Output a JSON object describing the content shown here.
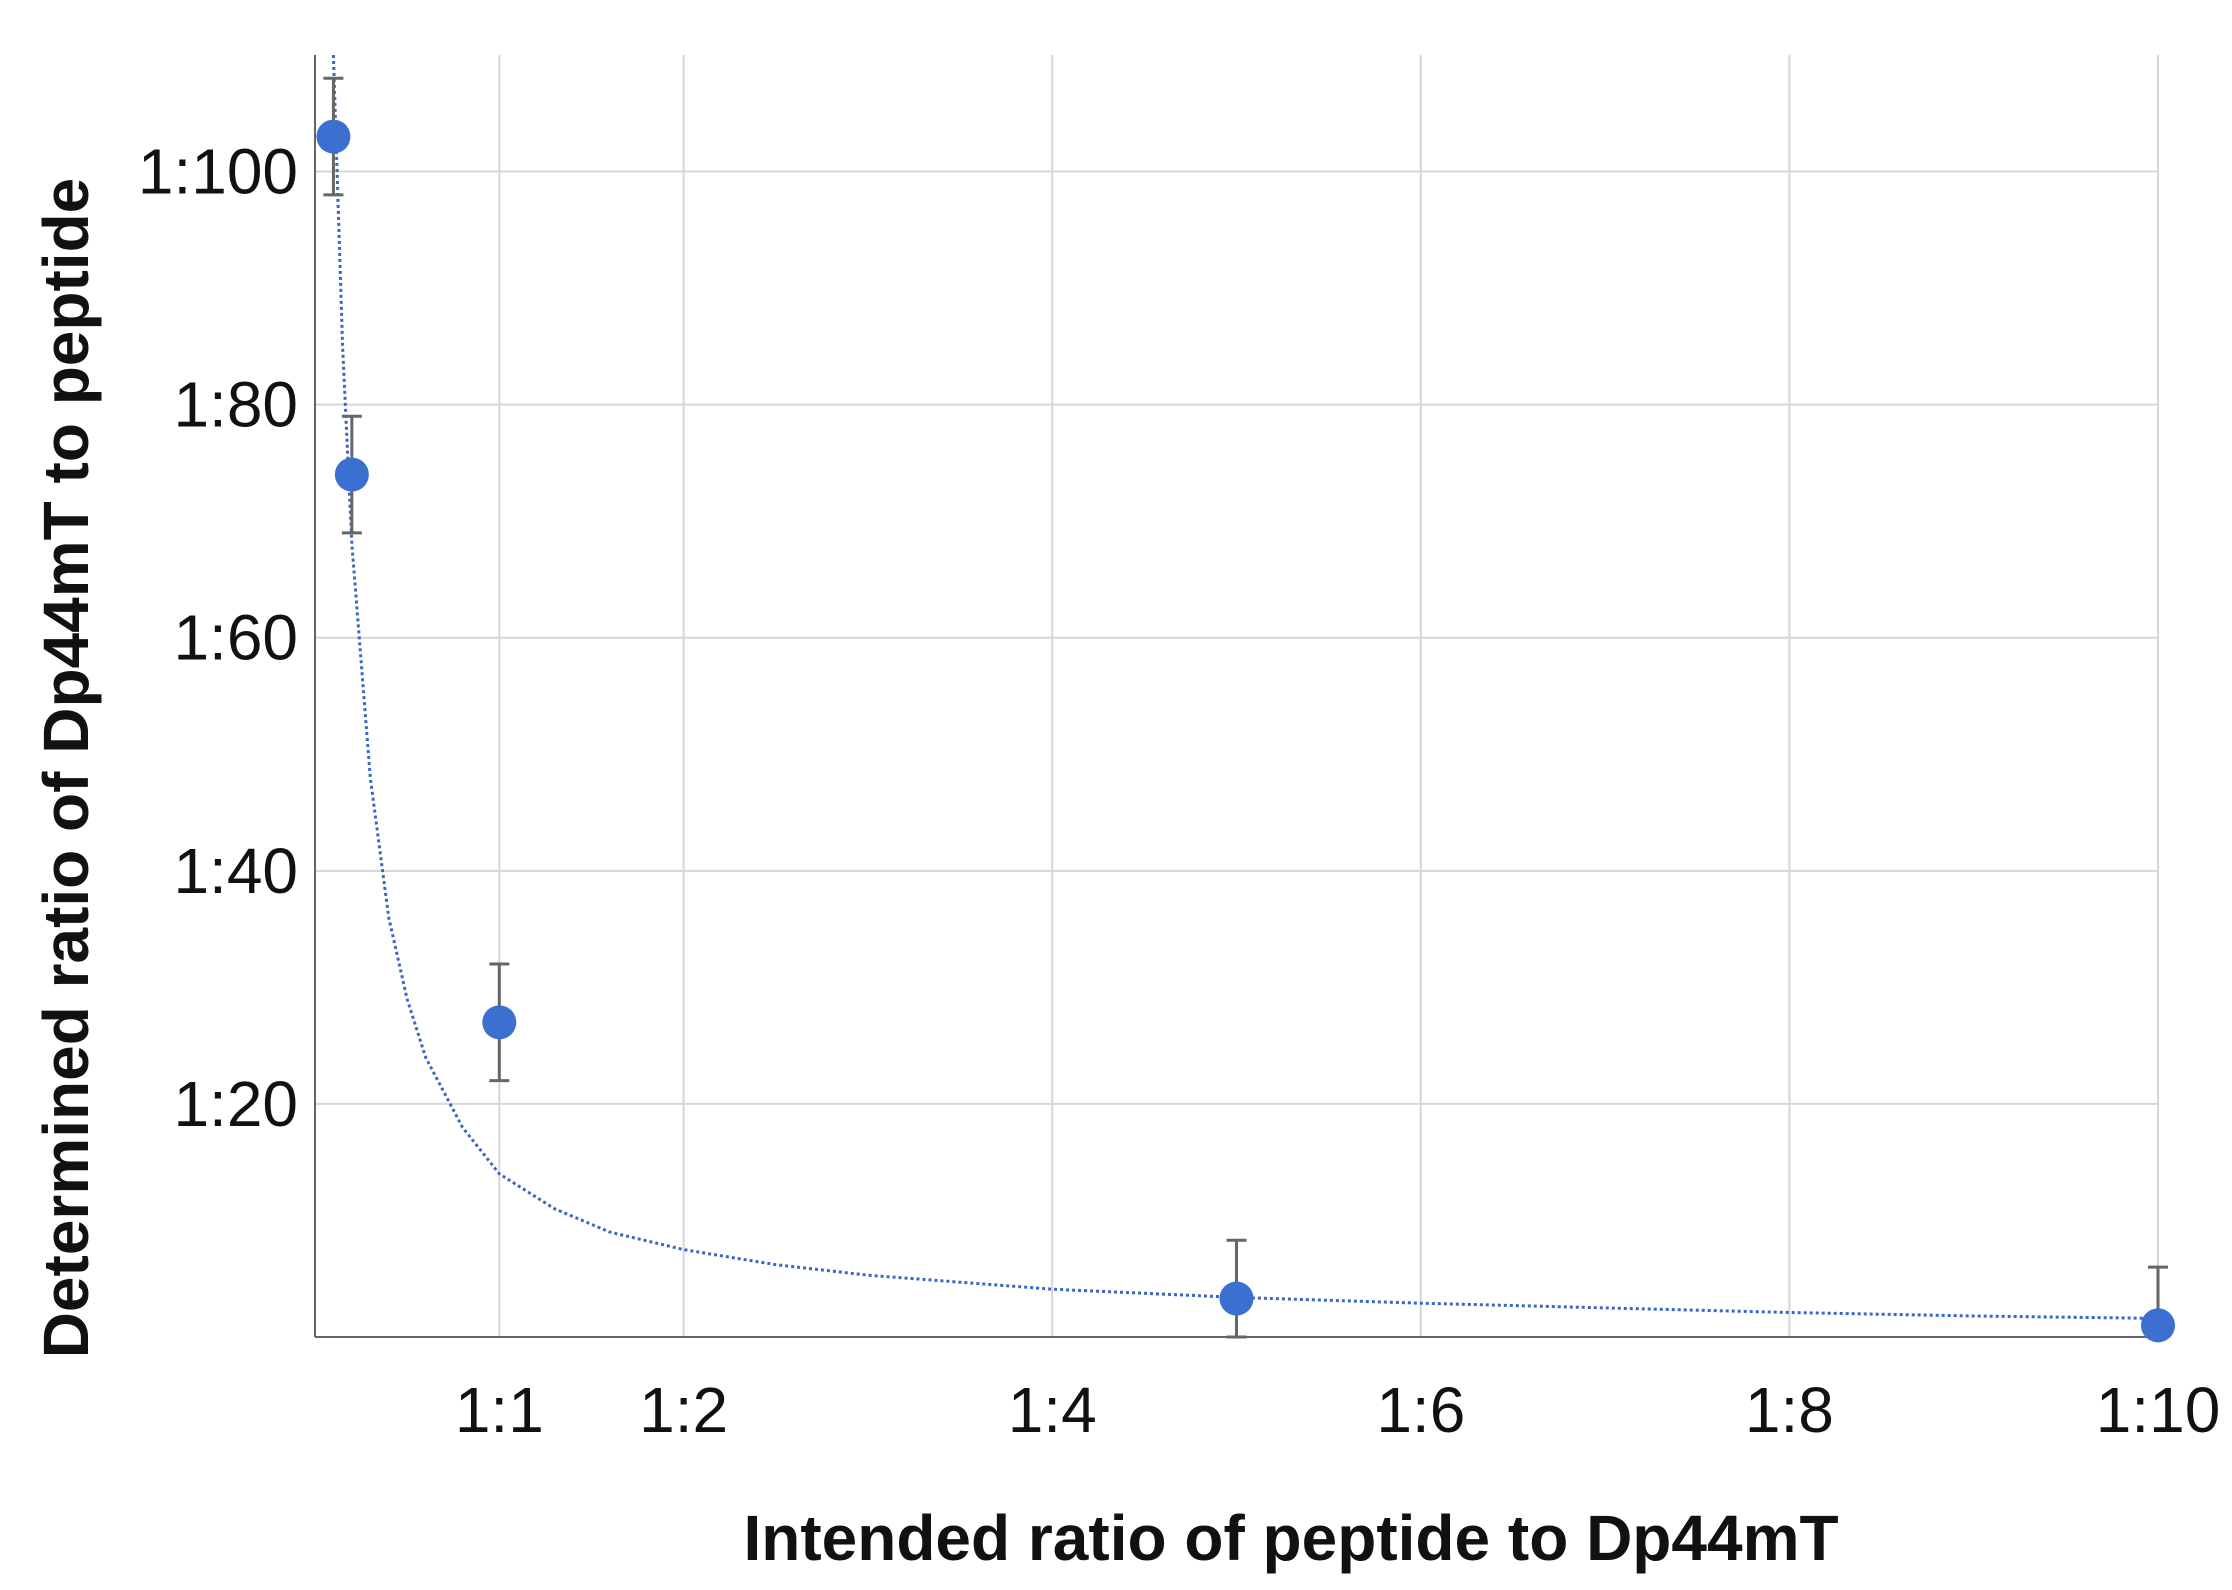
{
  "chart_data": {
    "type": "scatter",
    "xlabel": "Intended ratio of peptide to Dp44mT",
    "ylabel": "Determined ratio of Dp44mT to peptide",
    "xlim": [
      0,
      10
    ],
    "ylim": [
      0,
      110
    ],
    "x_ticks": [
      {
        "value": 1,
        "label": "1:1"
      },
      {
        "value": 2,
        "label": "1:2"
      },
      {
        "value": 4,
        "label": "1:4"
      },
      {
        "value": 6,
        "label": "1:6"
      },
      {
        "value": 8,
        "label": "1:8"
      },
      {
        "value": 10,
        "label": "1:10"
      }
    ],
    "y_ticks": [
      {
        "value": 20,
        "label": "1:20"
      },
      {
        "value": 40,
        "label": "1:40"
      },
      {
        "value": 60,
        "label": "1:60"
      },
      {
        "value": 80,
        "label": "1:80"
      },
      {
        "value": 100,
        "label": "1:100"
      }
    ],
    "grid": true,
    "series": [
      {
        "name": "Determined ratio",
        "color": "#3b6fd0",
        "points": [
          {
            "x": 0.1,
            "y": 103,
            "err": 5
          },
          {
            "x": 0.2,
            "y": 74,
            "err": 5
          },
          {
            "x": 1.0,
            "y": 27,
            "err": 5
          },
          {
            "x": 5.0,
            "y": 3.3,
            "err": 5
          },
          {
            "x": 10.0,
            "y": 1,
            "err": 5
          }
        ]
      }
    ],
    "fit": {
      "style": "dotted",
      "color": "#3a66c8",
      "points": [
        {
          "x": 0.1,
          "y": 110
        },
        {
          "x": 0.15,
          "y": 85
        },
        {
          "x": 0.2,
          "y": 68
        },
        {
          "x": 0.3,
          "y": 48
        },
        {
          "x": 0.4,
          "y": 36
        },
        {
          "x": 0.5,
          "y": 29
        },
        {
          "x": 0.6,
          "y": 24
        },
        {
          "x": 0.8,
          "y": 18
        },
        {
          "x": 1.0,
          "y": 14
        },
        {
          "x": 1.3,
          "y": 11
        },
        {
          "x": 1.6,
          "y": 9
        },
        {
          "x": 2.0,
          "y": 7.5
        },
        {
          "x": 2.5,
          "y": 6.2
        },
        {
          "x": 3.0,
          "y": 5.3
        },
        {
          "x": 4.0,
          "y": 4.1
        },
        {
          "x": 5.0,
          "y": 3.4
        },
        {
          "x": 6.0,
          "y": 2.9
        },
        {
          "x": 7.0,
          "y": 2.5
        },
        {
          "x": 8.0,
          "y": 2.1
        },
        {
          "x": 9.0,
          "y": 1.8
        },
        {
          "x": 10.0,
          "y": 1.6
        }
      ]
    }
  }
}
